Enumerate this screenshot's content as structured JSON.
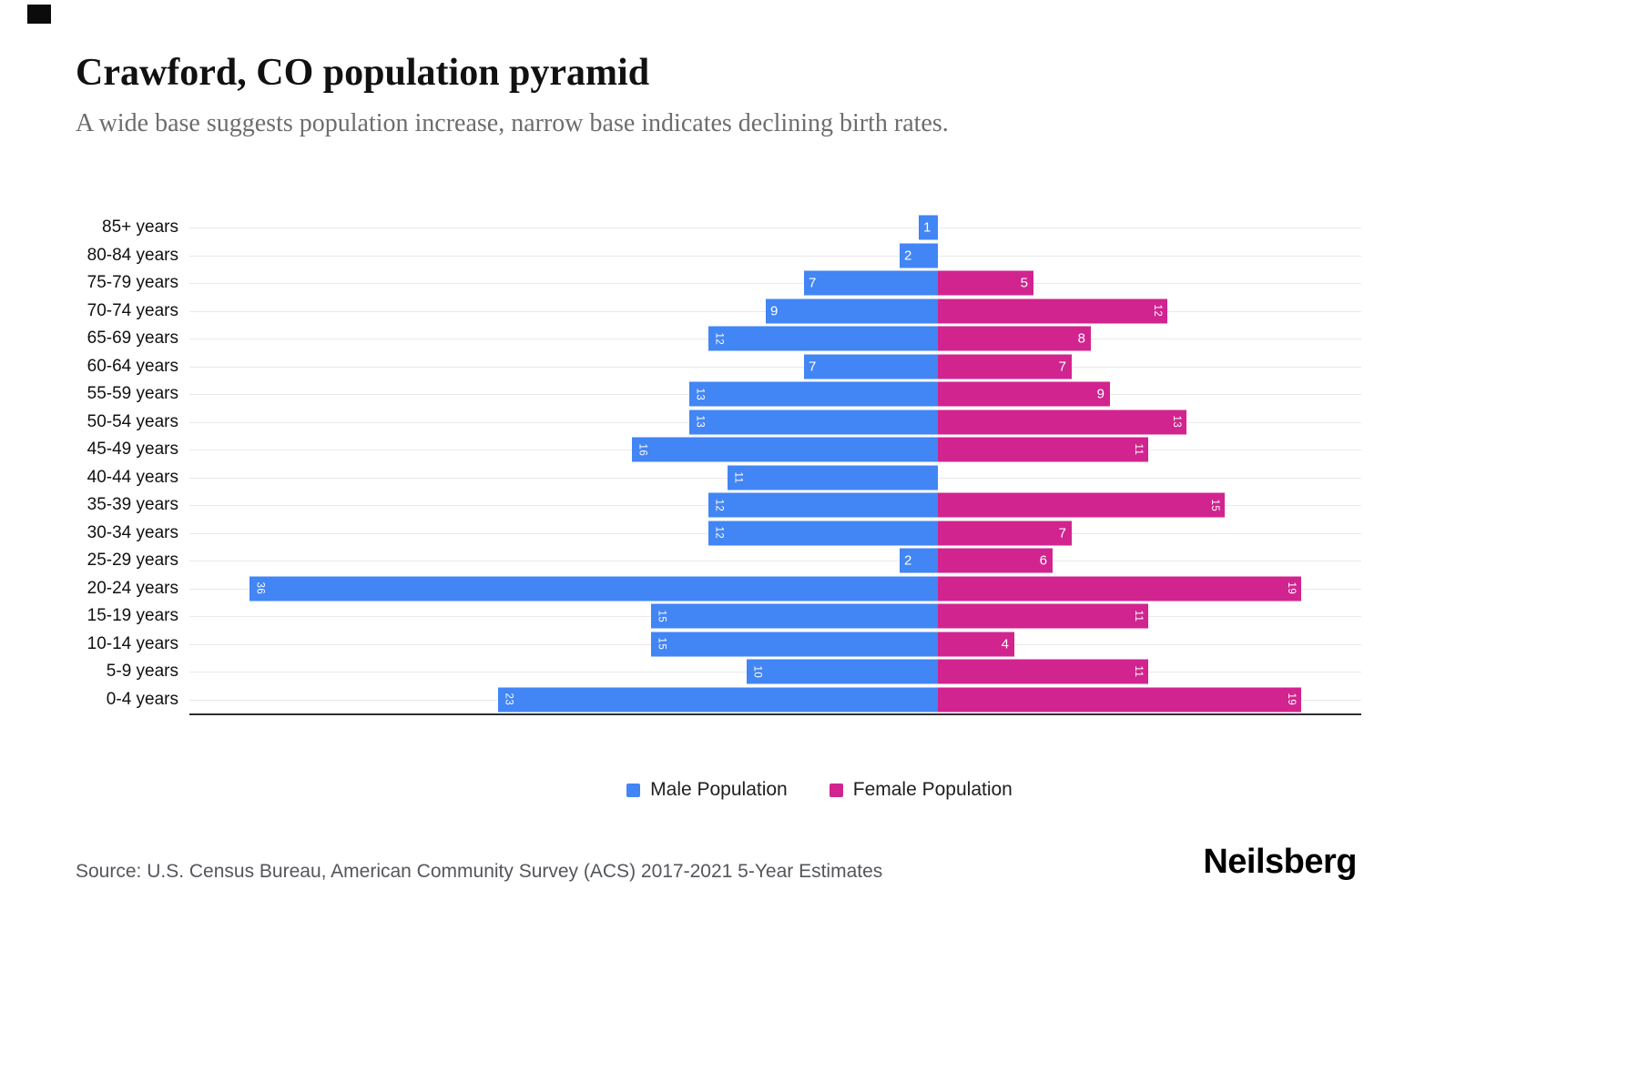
{
  "page": {
    "title": "Crawford, CO population pyramid",
    "subtitle": "A wide base suggests population increase, narrow base indicates declining birth rates.",
    "source": "Source: U.S. Census Bureau, American Community Survey (ACS) 2017-2021 5-Year Estimates",
    "logo": "Neilsberg"
  },
  "legend": {
    "male": "Male Population",
    "female": "Female Population"
  },
  "colors": {
    "male": "#4285F4",
    "female": "#D1248F",
    "gridline": "#e9e9e9",
    "axis": "#2f2f2f"
  },
  "chart_data": {
    "type": "bar",
    "variant": "population-pyramid",
    "orientation": "horizontal",
    "title": "Crawford, CO population pyramid",
    "subtitle": "A wide base suggests population increase, narrow base indicates declining birth rates.",
    "categories": [
      "85+ years",
      "80-84 years",
      "75-79 years",
      "70-74 years",
      "65-69 years",
      "60-64 years",
      "55-59 years",
      "50-54 years",
      "45-49 years",
      "40-44 years",
      "35-39 years",
      "30-34 years",
      "25-29 years",
      "20-24 years",
      "15-19 years",
      "10-14 years",
      "5-9 years",
      "0-4 years"
    ],
    "series": [
      {
        "name": "Male Population",
        "color": "#4285F4",
        "values": [
          1,
          2,
          7,
          9,
          12,
          7,
          13,
          13,
          16,
          11,
          12,
          12,
          2,
          36,
          15,
          15,
          10,
          23
        ]
      },
      {
        "name": "Female Population",
        "color": "#D1248F",
        "values": [
          0,
          0,
          5,
          12,
          8,
          7,
          9,
          13,
          11,
          0,
          15,
          7,
          6,
          19,
          11,
          4,
          11,
          19
        ]
      }
    ],
    "value_labels": "inside-bar-ends, white; two-digit values rotated 90deg",
    "xlabel": "",
    "ylabel": "",
    "grid": "horizontal-light",
    "legend_position": "bottom"
  }
}
